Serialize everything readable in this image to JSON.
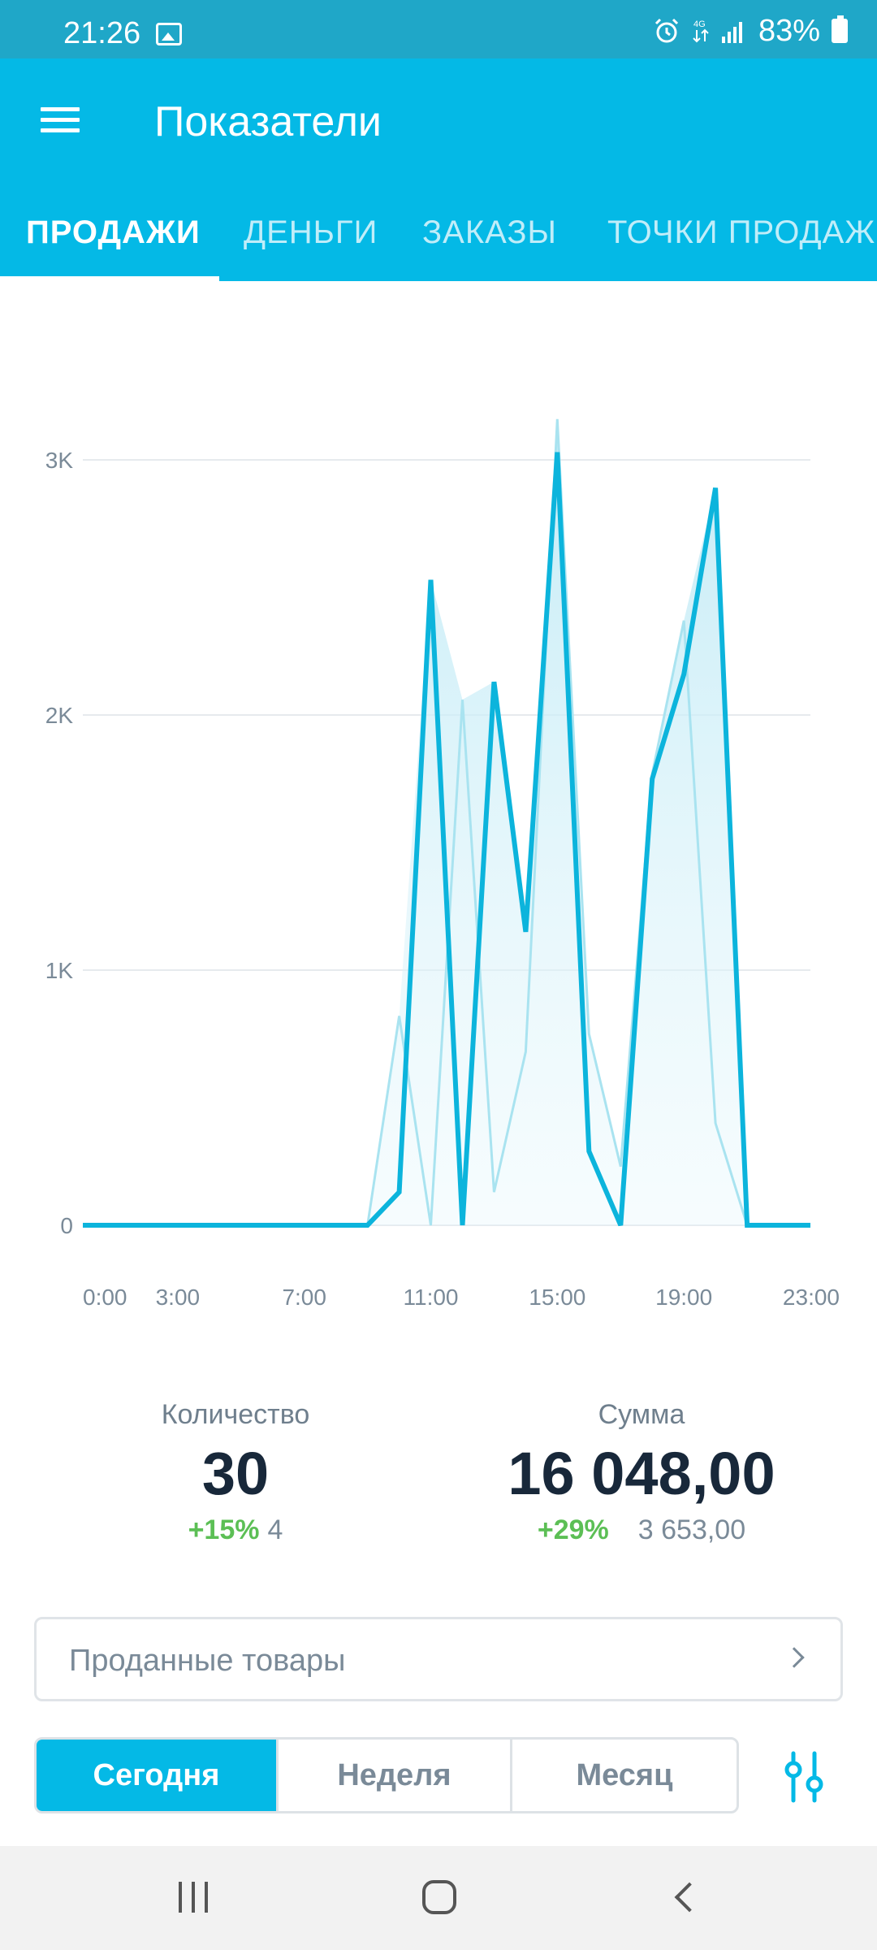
{
  "status_bar": {
    "time": "21:26",
    "network": "4G",
    "battery": "83%",
    "icons": [
      "image-icon",
      "alarm-icon",
      "data-icon",
      "signal-icon",
      "battery-icon"
    ]
  },
  "app_bar": {
    "title": "Показатели",
    "menu_icon": "menu-icon"
  },
  "tabs": [
    {
      "label": "ПРОДАЖИ",
      "active": true
    },
    {
      "label": "ДЕНЬГИ",
      "active": false
    },
    {
      "label": "ЗАКАЗЫ",
      "active": false
    },
    {
      "label": "ТОЧКИ ПРОДАЖ",
      "active": false
    }
  ],
  "chart_data": {
    "type": "area",
    "title": "",
    "xlabel": "",
    "ylabel": "",
    "x_tick_labels": [
      "0:00",
      "3:00",
      "7:00",
      "11:00",
      "15:00",
      "19:00",
      "23:00"
    ],
    "y_tick_labels": [
      "0",
      "1K",
      "2K",
      "3K"
    ],
    "ylim": [
      0,
      3200
    ],
    "grid": true,
    "x": [
      0,
      1,
      2,
      3,
      4,
      5,
      6,
      7,
      8,
      9,
      10,
      11,
      12,
      13,
      14,
      15,
      16,
      17,
      18,
      19,
      20,
      21,
      22,
      23
    ],
    "series": [
      {
        "values": [
          0,
          0,
          0,
          0,
          0,
          0,
          0,
          0,
          0,
          0,
          130,
          2530,
          0,
          2130,
          1150,
          3030,
          290,
          0,
          1750,
          2160,
          2890,
          0,
          0,
          0
        ],
        "color": "#0cb4dc"
      },
      {
        "values": [
          0,
          0,
          0,
          0,
          0,
          0,
          0,
          0,
          0,
          0,
          820,
          0,
          2060,
          130,
          680,
          3160,
          750,
          230,
          1770,
          2370,
          400,
          0,
          0,
          0
        ],
        "color": "#a9e3f0"
      }
    ]
  },
  "stats": {
    "quantity": {
      "label": "Количество",
      "value": "30",
      "change_pct": "+15%",
      "prev": "4"
    },
    "sum": {
      "label": "Сумма",
      "value": "16 048,00",
      "change_pct": "+29%",
      "prev": "3 653,00"
    }
  },
  "sold_goods": {
    "label": "Проданные товары"
  },
  "period": [
    {
      "label": "Сегодня",
      "active": true
    },
    {
      "label": "Неделя",
      "active": false
    },
    {
      "label": "Месяц",
      "active": false
    }
  ],
  "colors": {
    "accent": "#04b9e6",
    "status_bar": "#1fa7c8",
    "positive": "#5cbf55",
    "text_dark": "#18283a",
    "text_muted": "#7a8a98"
  }
}
